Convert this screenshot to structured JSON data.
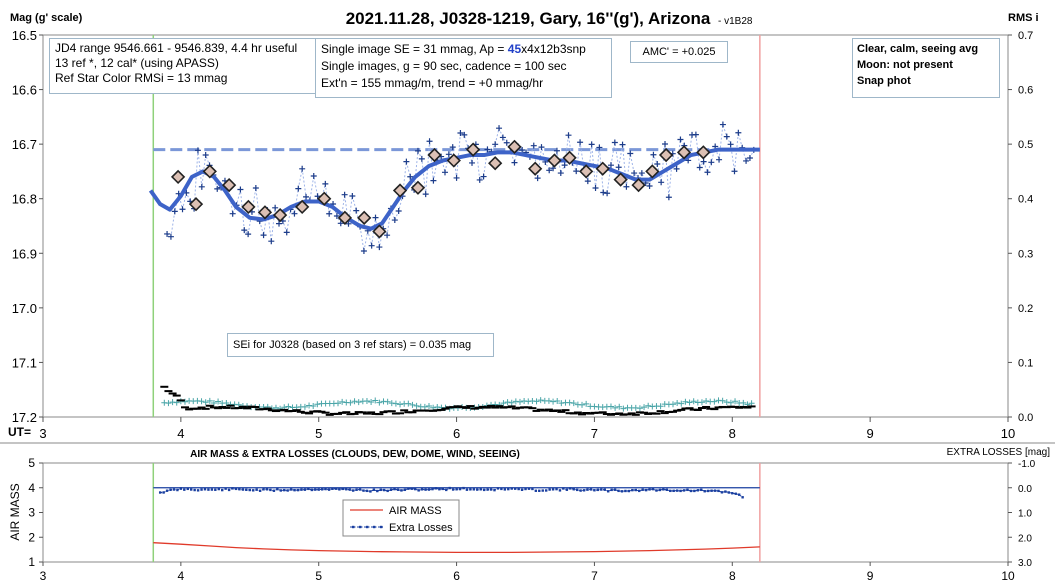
{
  "chart_data": [
    {
      "type": "scatter",
      "title": "2021.11.28, J0328-1219, Gary, 16''(g'), Arizona",
      "version": "- v1B28",
      "ylabel": "Mag (g' scale)",
      "y2label": "RMS i",
      "xlabel": "UT=",
      "xlim": [
        3,
        10
      ],
      "ylim": [
        17.2,
        16.5
      ],
      "y2lim": [
        0.0,
        0.7
      ],
      "xticks": [
        "3",
        "4",
        "5",
        "6",
        "7",
        "8",
        "9",
        "10"
      ],
      "yticks": [
        "16.5",
        "16.6",
        "16.7",
        "16.8",
        "16.9",
        "17.0",
        "17.1",
        "17.2"
      ],
      "y2ticks": [
        "0.7",
        "0.6",
        "0.5",
        "0.4",
        "0.3",
        "0.2",
        "0.1",
        "0.0"
      ],
      "vlines": {
        "start": 3.8,
        "end": 8.2,
        "start_color": "#8fd17a",
        "end_color": "#f0a0a0"
      },
      "reference_mag": 16.71,
      "binned": {
        "x": [
          3.98,
          4.11,
          4.21,
          4.35,
          4.49,
          4.61,
          4.72,
          4.88,
          5.04,
          5.19,
          5.33,
          5.44,
          5.59,
          5.72,
          5.84,
          5.98,
          6.12,
          6.28,
          6.42,
          6.57,
          6.71,
          6.82,
          6.94,
          7.06,
          7.19,
          7.32,
          7.42,
          7.52,
          7.65,
          7.79
        ],
        "y": [
          16.76,
          16.81,
          16.75,
          16.775,
          16.815,
          16.825,
          16.83,
          16.815,
          16.8,
          16.835,
          16.835,
          16.86,
          16.785,
          16.78,
          16.72,
          16.73,
          16.71,
          16.735,
          16.705,
          16.745,
          16.73,
          16.725,
          16.75,
          16.745,
          16.765,
          16.775,
          16.75,
          16.72,
          16.715,
          16.715
        ]
      },
      "model_curve": {
        "x": [
          3.78,
          3.85,
          3.92,
          4.0,
          4.08,
          4.16,
          4.24,
          4.32,
          4.4,
          4.5,
          4.6,
          4.7,
          4.8,
          4.9,
          5.0,
          5.1,
          5.2,
          5.3,
          5.38,
          5.46,
          5.54,
          5.62,
          5.7,
          5.8,
          5.9,
          6.0,
          6.1,
          6.2,
          6.3,
          6.4,
          6.5,
          6.6,
          6.7,
          6.8,
          6.9,
          7.0,
          7.1,
          7.2,
          7.3,
          7.4,
          7.5,
          7.6,
          7.7,
          7.8,
          7.9,
          8.0,
          8.1,
          8.2
        ],
        "y": [
          16.785,
          16.81,
          16.82,
          16.795,
          16.76,
          16.75,
          16.76,
          16.785,
          16.815,
          16.835,
          16.838,
          16.83,
          16.815,
          16.805,
          16.805,
          16.815,
          16.835,
          16.85,
          16.855,
          16.845,
          16.815,
          16.785,
          16.76,
          16.74,
          16.73,
          16.725,
          16.72,
          16.72,
          16.715,
          16.715,
          16.72,
          16.725,
          16.73,
          16.73,
          16.735,
          16.74,
          16.745,
          16.755,
          16.765,
          16.765,
          16.75,
          16.735,
          16.72,
          16.715,
          16.71,
          16.71,
          16.71,
          16.71
        ]
      },
      "rms_series_note": "black and teal traces on RMS axis (about 0.02-0.06)"
    },
    {
      "type": "line",
      "title": "AIR MASS & EXTRA LOSSES (CLOUDS, DEW, DOME, WIND, SEEING)",
      "ylabel": "AIR MASS",
      "y2label": "EXTRA LOSSES [mag]",
      "xlim": [
        3,
        10
      ],
      "ylim": [
        1,
        5
      ],
      "y2lim": [
        3.0,
        -1.0
      ],
      "xticks": [
        "3",
        "4",
        "5",
        "6",
        "7",
        "8",
        "9",
        "10"
      ],
      "yticks": [
        "5",
        "4",
        "3",
        "2",
        "1"
      ],
      "y2ticks": [
        "-1.0",
        "0.0",
        "1.0",
        "2.0",
        "3.0"
      ],
      "series": [
        {
          "name": "AIR MASS",
          "color": "#e03a2a",
          "x": [
            3.8,
            4.0,
            4.2,
            4.4,
            4.6,
            4.8,
            5.0,
            5.2,
            5.4,
            5.6,
            5.8,
            6.0,
            6.2,
            6.4,
            6.6,
            6.8,
            7.0,
            7.2,
            7.4,
            7.6,
            7.8,
            8.0,
            8.2
          ],
          "values": [
            1.78,
            1.72,
            1.65,
            1.58,
            1.53,
            1.49,
            1.46,
            1.44,
            1.42,
            1.41,
            1.4,
            1.39,
            1.39,
            1.39,
            1.4,
            1.41,
            1.42,
            1.44,
            1.46,
            1.49,
            1.52,
            1.56,
            1.61
          ]
        },
        {
          "name": "Extra Losses",
          "color": "#1a3fa0",
          "x": [
            3.85,
            4.0,
            4.2,
            4.4,
            4.6,
            4.8,
            5.0,
            5.2,
            5.4,
            5.6,
            5.8,
            6.0,
            6.2,
            6.4,
            6.6,
            6.8,
            7.0,
            7.2,
            7.4,
            7.6,
            7.8,
            8.0,
            8.1
          ],
          "values": [
            0.18,
            0.05,
            0.08,
            0.06,
            0.1,
            0.08,
            0.05,
            0.07,
            0.12,
            0.08,
            0.06,
            0.04,
            0.07,
            0.05,
            0.09,
            0.06,
            0.1,
            0.12,
            0.08,
            0.1,
            0.12,
            0.2,
            0.4
          ]
        }
      ]
    }
  ],
  "info": {
    "box1": [
      "JD4 range 9546.661 - 9546.839, 4.4 hr useful",
      "13 ref *, 12 cal* (using APASS)",
      "Ref Star Color RMSi = 13 mmag"
    ],
    "box2_line1_pre": "Single image SE = 31 mmag, Ap = ",
    "box2_line1_ap": "45",
    "box2_line1_post": "x4x12b3snp",
    "box2": [
      "Single images, g = 90 sec, cadence = 100 sec",
      "Ext'n = 155 mmag/m, trend = +0 mmag/hr"
    ],
    "amc": "AMC' = +0.025",
    "box3": [
      "Clear, calm, seeing avg",
      "Moon: not present",
      "Snap phot"
    ],
    "sei": "SEi for J0328 (based on 3 ref stars) = 0.035 mag"
  }
}
